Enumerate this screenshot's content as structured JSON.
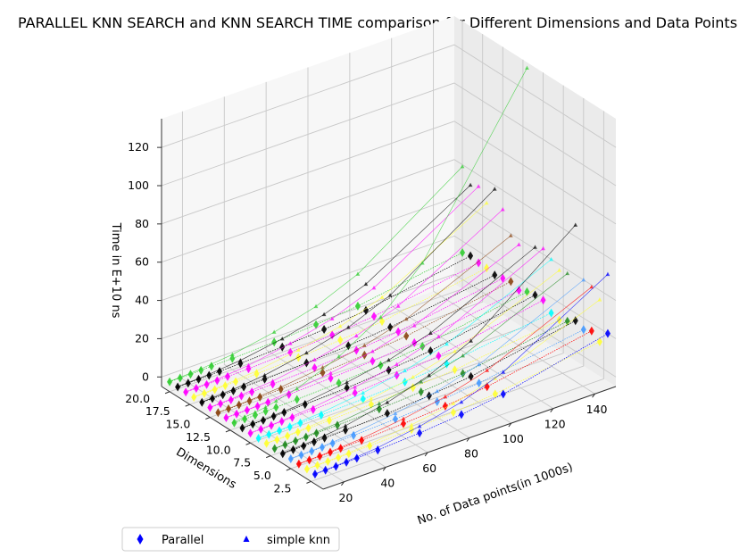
{
  "chart_data": {
    "type": "scatter",
    "title": "PARALLEL KNN SEARCH and KNN SEARCH TIME comparison for Different Dimensions and Data Points",
    "xlabel": "No. of Data points(in 1000s)",
    "ylabel": "Dimensions",
    "zlabel": "Time in E+10 ns",
    "x_ticks": [
      "20",
      "40",
      "60",
      "80",
      "100",
      "120",
      "140"
    ],
    "y_ticks": [
      "2.5",
      "5.0",
      "7.5",
      "10.0",
      "12.5",
      "15.0",
      "17.5",
      "20.0"
    ],
    "z_ticks": [
      "0",
      "20",
      "40",
      "60",
      "80",
      "100",
      "120"
    ],
    "xlim": [
      10,
      150
    ],
    "ylim": [
      1,
      21
    ],
    "zlim": [
      -5,
      135
    ],
    "grid": true,
    "legend": {
      "placement": "bottom-left",
      "entries": [
        "Parallel",
        "simple knn"
      ]
    },
    "x": [
      10,
      15,
      20,
      25,
      30,
      40,
      60,
      80,
      100,
      150
    ],
    "series_ref": [
      {
        "name": "Parallel",
        "marker": "diamond",
        "color": "#0000ff",
        "dimension": 2,
        "values": [
          0.2,
          0.3,
          0.4,
          0.6,
          0.8,
          1.2,
          2.5,
          4.5,
          7.5,
          20.0
        ]
      },
      {
        "name": "simple knn",
        "marker": "triangle",
        "color": "#0000ff",
        "dimension": 2,
        "values": [
          0.3,
          0.5,
          0.7,
          1.0,
          1.5,
          2.5,
          6,
          11,
          19,
          51
        ]
      }
    ],
    "rows": [
      {
        "dimension": 2,
        "color": "#0000ff",
        "parallel_max": 20.0,
        "simple_max": 51
      },
      {
        "dimension": 3,
        "color": "#ffff33",
        "parallel_max": 13.0,
        "simple_max": 35
      },
      {
        "dimension": 4,
        "color": "#ff0000",
        "parallel_max": 16.0,
        "simple_max": 39
      },
      {
        "dimension": 5,
        "color": "#4499ff",
        "parallel_max": 14.0,
        "simple_max": 40
      },
      {
        "dimension": 6,
        "color": "#000000",
        "parallel_max": 16.0,
        "simple_max": 66
      },
      {
        "dimension": 7,
        "color": "#228b22",
        "parallel_max": 13.0,
        "simple_max": 38
      },
      {
        "dimension": 8,
        "color": "#ffff33",
        "parallel_max": 11.0,
        "simple_max": 37
      },
      {
        "dimension": 9,
        "color": "#00ffff",
        "parallel_max": 12.0,
        "simple_max": 40
      },
      {
        "dimension": 10,
        "color": "#ff00ff",
        "parallel_max": 16.0,
        "simple_max": 43
      },
      {
        "dimension": 11,
        "color": "#000000",
        "parallel_max": 16.0,
        "simple_max": 41
      },
      {
        "dimension": 12,
        "color": "#32cd32",
        "parallel_max": 15.0,
        "simple_max": 132
      },
      {
        "dimension": 13,
        "color": "#ff00ff",
        "parallel_max": 13.0,
        "simple_max": 37
      },
      {
        "dimension": 14,
        "color": "#8b4513",
        "parallel_max": 15.0,
        "simple_max": 39
      },
      {
        "dimension": 15,
        "color": "#ff00ff",
        "parallel_max": 14.0,
        "simple_max": 50
      },
      {
        "dimension": 16,
        "color": "#000000",
        "parallel_max": 13.0,
        "simple_max": 58
      },
      {
        "dimension": 17,
        "color": "#ffff33",
        "parallel_max": 14.0,
        "simple_max": 48
      },
      {
        "dimension": 18,
        "color": "#ff00ff",
        "parallel_max": 14.0,
        "simple_max": 54
      },
      {
        "dimension": 19,
        "color": "#000000",
        "parallel_max": 15.0,
        "simple_max": 52
      },
      {
        "dimension": 20,
        "color": "#32cd32",
        "parallel_max": 14.0,
        "simple_max": 59
      }
    ]
  }
}
